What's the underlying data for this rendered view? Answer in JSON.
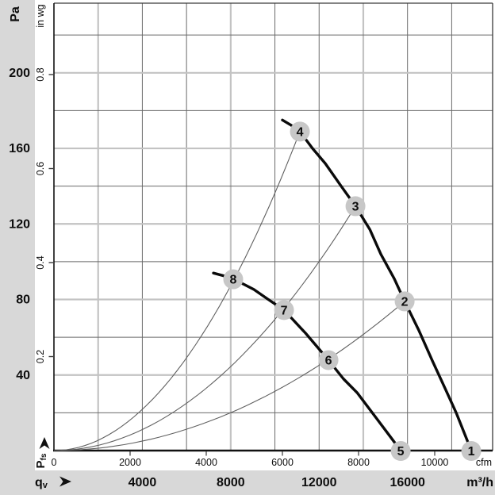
{
  "chart_data": {
    "type": "line",
    "title": "",
    "axes": {
      "y_left_unit": "Pa",
      "y_left_ticks": [
        200,
        160,
        120,
        80,
        40
      ],
      "y_inner_unit": "in wg",
      "y_inner_ticks": [
        "0.8",
        "0.6",
        "0.4",
        "0.2"
      ],
      "y_inner_tick_values": [
        0.8,
        0.6,
        0.4,
        0.2
      ],
      "x_cfm_tick_labels": [
        "0",
        "2000",
        "4000",
        "6000",
        "8000",
        "10000"
      ],
      "x_cfm_tick_values": [
        0,
        2000,
        4000,
        6000,
        8000,
        10000
      ],
      "x_cfm_unit": "cfm",
      "x_m3h_tick_labels": [
        "4000",
        "8000",
        "12000",
        "16000"
      ],
      "x_m3h_tick_values": [
        4000,
        8000,
        12000,
        16000
      ],
      "x_m3h_unit": "m³/h",
      "flow_symbol_main": "q",
      "flow_symbol_sub": "v",
      "pressure_symbol_main": "P",
      "pressure_symbol_sub": "fs",
      "x_range_m3h": [
        0,
        19850
      ],
      "y_range_pa": [
        0,
        237
      ],
      "grid": "on",
      "legend": "none"
    },
    "grid": {
      "vertical_step_m3h": 2000,
      "vertical_lines_m3h": [
        2000,
        4000,
        6000,
        8000,
        10000,
        12000,
        14000,
        16000,
        18000
      ],
      "vertical_major_m3h": [
        2000,
        8000,
        14000
      ],
      "horizontal_step_pa": 20,
      "horizontal_lines_pa": [
        20,
        40,
        60,
        80,
        100,
        120,
        140,
        160,
        180,
        200,
        220
      ],
      "horizontal_major_pa": [
        40,
        80,
        120,
        160,
        200
      ]
    },
    "series": [
      {
        "name": "high-speed-curve",
        "style": "thick",
        "points_m3h_pa": [
          [
            10340,
            175
          ],
          [
            10700,
            172.5
          ],
          [
            11130,
            168.9
          ],
          [
            11700,
            160
          ],
          [
            12280,
            152
          ],
          [
            13000,
            140
          ],
          [
            13645,
            129.4
          ],
          [
            14300,
            117
          ],
          [
            14793,
            104
          ],
          [
            15400,
            91
          ],
          [
            15871,
            79
          ],
          [
            16500,
            64
          ],
          [
            17127,
            47.5
          ],
          [
            17700,
            33
          ],
          [
            18204,
            20
          ],
          [
            18886,
            0
          ]
        ]
      },
      {
        "name": "low-speed-curve",
        "style": "thick",
        "points_m3h_pa": [
          [
            7217,
            94
          ],
          [
            7700,
            92.5
          ],
          [
            8113,
            90.7
          ],
          [
            8600,
            88
          ],
          [
            9048,
            85.3
          ],
          [
            9700,
            80
          ],
          [
            10413,
            74.4
          ],
          [
            11382,
            62.2
          ],
          [
            12424,
            47.9
          ],
          [
            13100,
            38
          ],
          [
            13716,
            30.7
          ],
          [
            14614,
            16.8
          ],
          [
            15150,
            8.5
          ],
          [
            15692,
            0
          ]
        ]
      },
      {
        "name": "system-curve-a",
        "style": "thin-parabola",
        "end_m3h": 11130,
        "end_pa": 168.9
      },
      {
        "name": "system-curve-b",
        "style": "thin-parabola",
        "end_m3h": 13645,
        "end_pa": 129.4
      },
      {
        "name": "system-curve-c",
        "style": "thin-parabola",
        "end_m3h": 15871,
        "end_pa": 79.0
      }
    ],
    "operating_points": [
      {
        "label": "1",
        "m3h": 18886,
        "pa": 0
      },
      {
        "label": "2",
        "m3h": 15871,
        "pa": 79
      },
      {
        "label": "3",
        "m3h": 13645,
        "pa": 129.4
      },
      {
        "label": "4",
        "m3h": 11130,
        "pa": 168.9
      },
      {
        "label": "5",
        "m3h": 15692,
        "pa": 0
      },
      {
        "label": "6",
        "m3h": 12424,
        "pa": 47.9
      },
      {
        "label": "7",
        "m3h": 10413,
        "pa": 74.4
      },
      {
        "label": "8",
        "m3h": 8113,
        "pa": 90.7
      }
    ],
    "colors": {
      "margin_bg": "#d8d8d8",
      "paper": "#ffffff",
      "grid_minor": "#6a6a6a",
      "grid_major": "#c3c3c3",
      "frame": "#3a3a3a",
      "axis": "#111111",
      "curve": "#0a0a0a",
      "system_curve": "#606060",
      "point_fill": "#c7c7c7",
      "point_text": "#ffffff",
      "label": "#0d0d0d"
    }
  }
}
